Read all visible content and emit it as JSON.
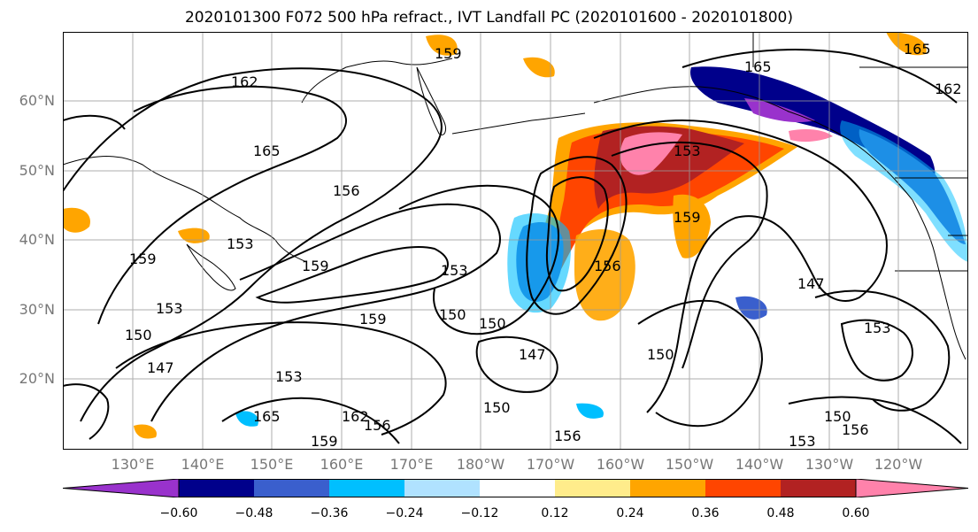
{
  "title": "2020101300 F072 500 hPa refract., IVT Landfall PC (2020101600 - 2020101800)",
  "map": {
    "lat_labels": [
      "60°N",
      "50°N",
      "40°N",
      "30°N",
      "20°N"
    ],
    "lon_labels": [
      "130°E",
      "140°E",
      "150°E",
      "160°E",
      "170°E",
      "180°W",
      "170°W",
      "160°W",
      "150°W",
      "140°W",
      "130°W",
      "120°W"
    ],
    "contour_labels": [
      "162",
      "165",
      "156",
      "153",
      "159",
      "153",
      "159",
      "150",
      "147",
      "159",
      "153",
      "150",
      "147",
      "153",
      "150",
      "159",
      "165",
      "165",
      "162",
      "153",
      "159",
      "147",
      "150",
      "153",
      "156",
      "156",
      "150",
      "153",
      "156",
      "162",
      "159",
      "156",
      "165",
      "150"
    ]
  },
  "colorbar": {
    "ticks": [
      "−0.60",
      "−0.48",
      "−0.36",
      "−0.24",
      "−0.12",
      "0.12",
      "0.24",
      "0.36",
      "0.48",
      "0.60"
    ],
    "colors": [
      "#9932cc",
      "#00008b",
      "#3a5fcd",
      "#00bfff",
      "#b0e2ff",
      "#ffffff",
      "#ffec8b",
      "#ffa500",
      "#ff4500",
      "#b22222",
      "#ff82ab"
    ]
  }
}
